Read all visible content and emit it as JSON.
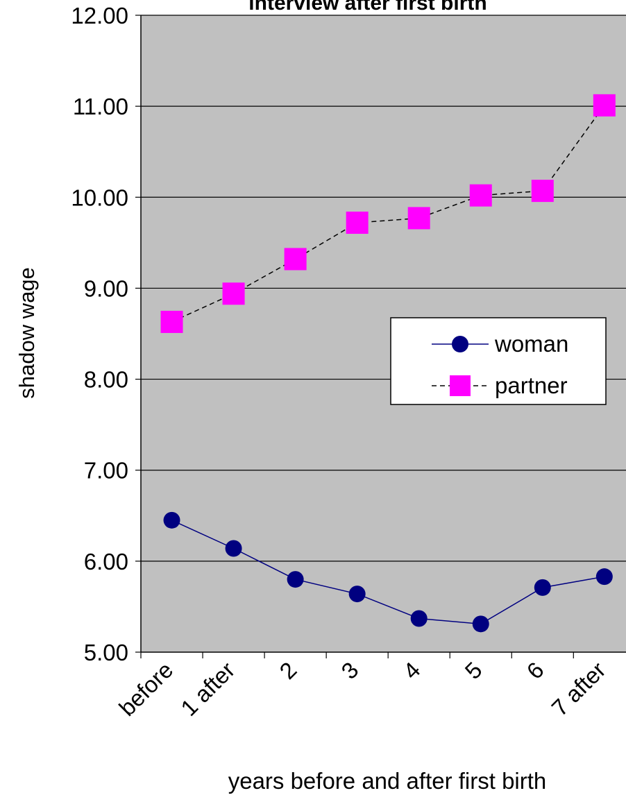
{
  "chart_data": {
    "type": "line",
    "title": "interview after first birth",
    "xlabel": "years before and after first birth",
    "ylabel": "shadow wage",
    "categories": [
      "before",
      "1 after",
      "2",
      "3",
      "4",
      "5",
      "6",
      "7 after"
    ],
    "ylim": [
      5.0,
      12.0
    ],
    "yticks": [
      "5.00",
      "6.00",
      "7.00",
      "8.00",
      "9.00",
      "10.00",
      "11.00",
      "12.00"
    ],
    "grid": "horizontal",
    "legend_position": "right",
    "series": [
      {
        "name": "woman",
        "values": [
          6.45,
          6.14,
          5.8,
          5.64,
          5.37,
          5.31,
          5.71,
          5.83
        ],
        "color": "#000080",
        "marker": "circle",
        "line_style": "solid"
      },
      {
        "name": "partner",
        "values": [
          8.63,
          8.94,
          9.32,
          9.72,
          9.77,
          10.02,
          10.07,
          11.01
        ],
        "color": "#FF00FF",
        "marker": "square",
        "line_style": "dashed"
      }
    ],
    "colors": {
      "plot_background": "#C0C0C0",
      "grid": "#000000"
    }
  }
}
